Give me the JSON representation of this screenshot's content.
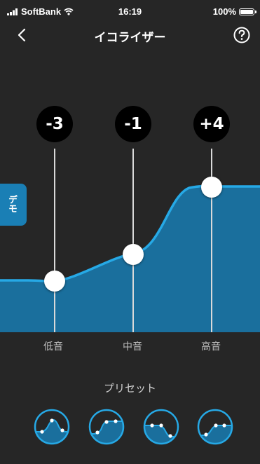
{
  "status_bar": {
    "carrier": "SoftBank",
    "time": "16:19",
    "battery": "100%"
  },
  "nav": {
    "title": "イコライザー",
    "back_icon": "chevron-left-icon",
    "help_icon": "question-circle-icon"
  },
  "demo_tab": {
    "label": "デモ"
  },
  "equalizer": {
    "bands": [
      {
        "label": "低音",
        "value": "-3",
        "level": -3
      },
      {
        "label": "中音",
        "value": "-1",
        "level": -1
      },
      {
        "label": "高音",
        "value": "+4",
        "level": 4
      }
    ],
    "fill_color": "#1a7fb5",
    "line_color": "#26a9e6"
  },
  "presets": {
    "title": "プリセット",
    "items": [
      {
        "icon": "preset-peak-curve-icon"
      },
      {
        "icon": "preset-rising-curve-icon"
      },
      {
        "icon": "preset-falling-curve-icon"
      },
      {
        "icon": "preset-step-up-curve-icon"
      }
    ]
  },
  "colors": {
    "background": "#262626",
    "accent": "#1a7fb5"
  }
}
